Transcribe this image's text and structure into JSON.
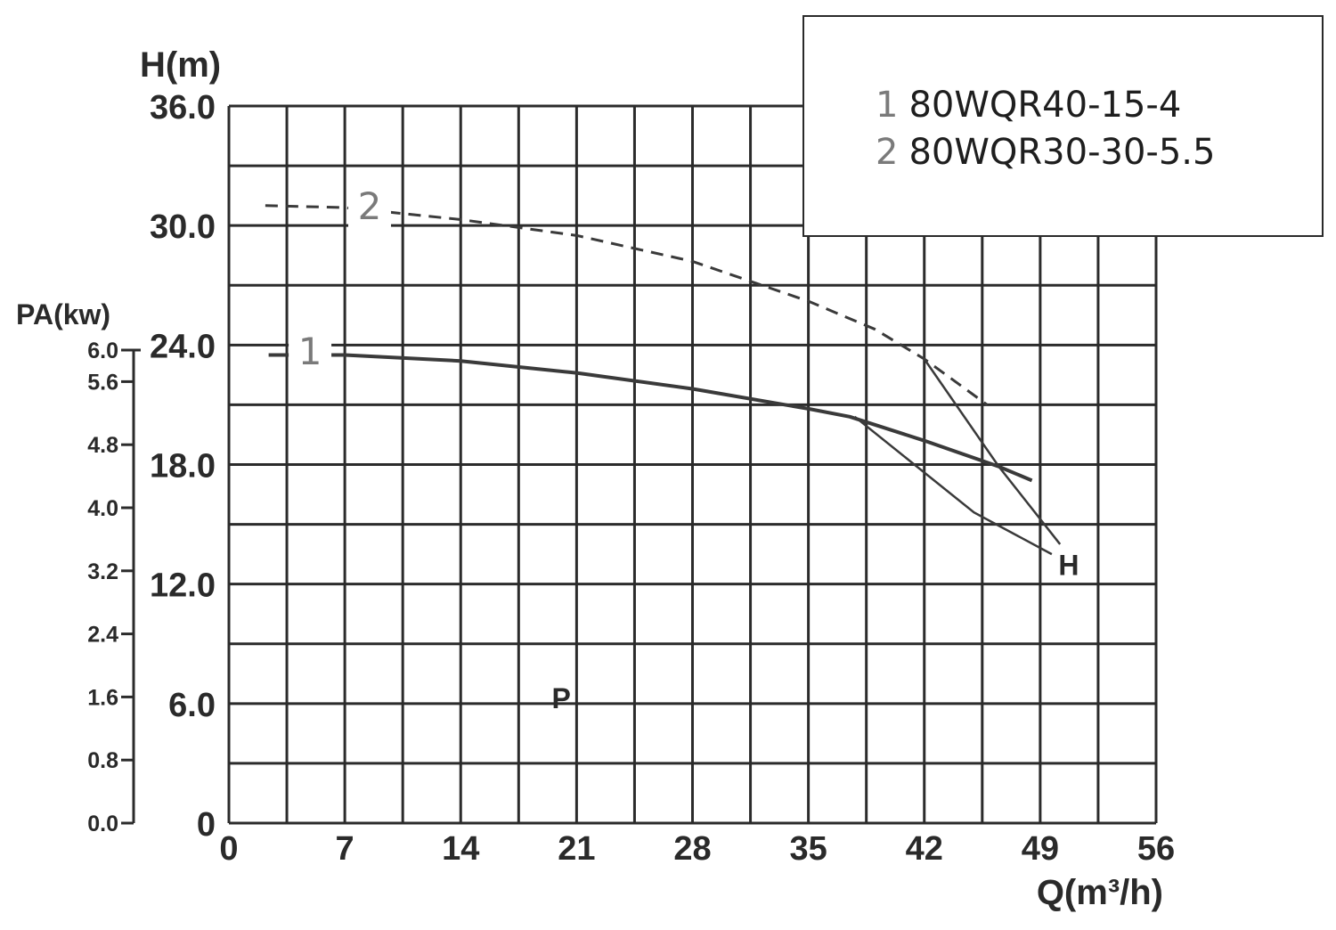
{
  "chart_data": {
    "type": "line",
    "y_title": "H(m)",
    "y2_title": "PA(kw)",
    "x_title": "Q(m³/h)",
    "x_ticks": [
      "0",
      "7",
      "14",
      "21",
      "28",
      "35",
      "42",
      "49",
      "56"
    ],
    "x_range": [
      0,
      56
    ],
    "y_ticks": [
      "0",
      "6.0",
      "12.0",
      "18.0",
      "24.0",
      "30.0",
      "36.0"
    ],
    "y_range": [
      0,
      36
    ],
    "y2_ticks": [
      "0.0",
      "0.8",
      "1.6",
      "2.4",
      "3.2",
      "4.0",
      "4.8",
      "5.6",
      "6.0"
    ],
    "y2_range": [
      0,
      6.0
    ],
    "grid": true,
    "series": [
      {
        "name": "1",
        "style": "solid",
        "x": [
          2.4,
          7,
          14,
          21,
          28,
          35,
          37.5,
          42,
          46.5,
          48.5
        ],
        "y": [
          23.5,
          23.5,
          23.2,
          22.6,
          21.8,
          20.8,
          20.4,
          19.2,
          17.9,
          17.2
        ]
      },
      {
        "name": "2",
        "style": "dashed",
        "x": [
          2.2,
          7,
          14,
          21,
          28,
          35,
          39,
          42,
          45.8
        ],
        "y": [
          31.0,
          30.9,
          30.3,
          29.5,
          28.2,
          26.2,
          24.8,
          23.3,
          21.0
        ]
      }
    ],
    "extra_lines": [
      {
        "x": [
          37.8,
          45,
          49.7
        ],
        "y": [
          20.4,
          15.6,
          13.5
        ]
      },
      {
        "x": [
          42,
          46.5,
          50.2
        ],
        "y": [
          23.3,
          17.9,
          14.0
        ]
      }
    ],
    "curve_labels": [
      {
        "text": "1",
        "x": 4.9,
        "y": 23.7
      },
      {
        "text": "2",
        "x": 8.5,
        "y": 31.0
      }
    ],
    "annotations": [
      {
        "text": "H",
        "x": 50.1,
        "y": 13.0
      },
      {
        "text": "P",
        "x": 19.5,
        "y": 6.3
      }
    ]
  },
  "legend": {
    "items": [
      {
        "number": "1",
        "model": "80WQR40-15-4"
      },
      {
        "number": "2",
        "model": "80WQR30-30-5.5"
      }
    ]
  }
}
